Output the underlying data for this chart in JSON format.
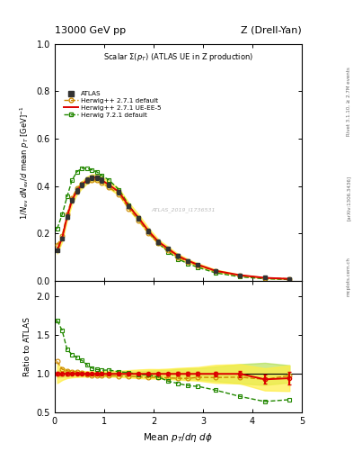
{
  "title_left": "13000 GeV pp",
  "title_right": "Z (Drell-Yan)",
  "plot_title": "Scalar Σ(p_{T}) (ATLAS UE in Z production)",
  "ylabel_main": "1/N_{ev} dN_{ev}/d mean p_{T} [GeV]^{-1}",
  "ylabel_ratio": "Ratio to ATLAS",
  "xlabel": "Mean p_{T}/dη dφ",
  "watermark": "ATLAS_2019_I1736531",
  "rivet_text": "Rivet 3.1.10, ≥ 2.7M events",
  "inspire_text": "[arXiv:1306.3436]",
  "mcplots_text": "mcplots.cern.ch",
  "atlas_x": [
    0.05,
    0.15,
    0.25,
    0.35,
    0.45,
    0.55,
    0.65,
    0.75,
    0.85,
    0.95,
    1.1,
    1.3,
    1.5,
    1.7,
    1.9,
    2.1,
    2.3,
    2.5,
    2.7,
    2.9,
    3.25,
    3.75,
    4.25,
    4.75
  ],
  "atlas_y": [
    0.13,
    0.18,
    0.27,
    0.34,
    0.38,
    0.405,
    0.425,
    0.435,
    0.435,
    0.425,
    0.405,
    0.375,
    0.315,
    0.265,
    0.21,
    0.165,
    0.135,
    0.105,
    0.085,
    0.068,
    0.043,
    0.024,
    0.014,
    0.009
  ],
  "atlas_yerr": [
    0.006,
    0.007,
    0.009,
    0.01,
    0.01,
    0.01,
    0.01,
    0.01,
    0.01,
    0.01,
    0.01,
    0.01,
    0.009,
    0.009,
    0.009,
    0.008,
    0.007,
    0.007,
    0.006,
    0.005,
    0.004,
    0.003,
    0.002,
    0.001
  ],
  "hw271_x": [
    0.05,
    0.15,
    0.25,
    0.35,
    0.45,
    0.55,
    0.65,
    0.75,
    0.85,
    0.95,
    1.1,
    1.3,
    1.5,
    1.7,
    1.9,
    2.1,
    2.3,
    2.5,
    2.7,
    2.9,
    3.25,
    3.75,
    4.25,
    4.75
  ],
  "hw271_y": [
    0.15,
    0.19,
    0.28,
    0.35,
    0.39,
    0.41,
    0.42,
    0.425,
    0.425,
    0.415,
    0.395,
    0.365,
    0.305,
    0.255,
    0.2,
    0.158,
    0.128,
    0.099,
    0.08,
    0.065,
    0.041,
    0.023,
    0.013,
    0.0088
  ],
  "hw271ue_x": [
    0.05,
    0.15,
    0.25,
    0.35,
    0.45,
    0.55,
    0.65,
    0.75,
    0.85,
    0.95,
    1.1,
    1.3,
    1.5,
    1.7,
    1.9,
    2.1,
    2.3,
    2.5,
    2.7,
    2.9,
    3.25,
    3.75,
    4.25,
    4.75
  ],
  "hw271ue_y": [
    0.13,
    0.18,
    0.27,
    0.34,
    0.38,
    0.405,
    0.425,
    0.435,
    0.435,
    0.425,
    0.405,
    0.375,
    0.315,
    0.265,
    0.21,
    0.165,
    0.135,
    0.105,
    0.085,
    0.068,
    0.043,
    0.024,
    0.013,
    0.0085
  ],
  "hw271ue_band_lo": [
    0.115,
    0.165,
    0.255,
    0.325,
    0.365,
    0.39,
    0.41,
    0.42,
    0.42,
    0.41,
    0.39,
    0.36,
    0.3,
    0.25,
    0.197,
    0.155,
    0.126,
    0.097,
    0.078,
    0.062,
    0.038,
    0.021,
    0.011,
    0.007
  ],
  "hw271ue_band_hi": [
    0.145,
    0.195,
    0.285,
    0.355,
    0.395,
    0.42,
    0.44,
    0.45,
    0.45,
    0.44,
    0.42,
    0.39,
    0.33,
    0.28,
    0.223,
    0.175,
    0.144,
    0.113,
    0.092,
    0.074,
    0.048,
    0.027,
    0.015,
    0.01
  ],
  "hw721_x": [
    0.05,
    0.15,
    0.25,
    0.35,
    0.45,
    0.55,
    0.65,
    0.75,
    0.85,
    0.95,
    1.1,
    1.3,
    1.5,
    1.7,
    1.9,
    2.1,
    2.3,
    2.5,
    2.7,
    2.9,
    3.25,
    3.75,
    4.25,
    4.75
  ],
  "hw721_y": [
    0.22,
    0.28,
    0.355,
    0.425,
    0.46,
    0.475,
    0.475,
    0.468,
    0.46,
    0.445,
    0.425,
    0.385,
    0.32,
    0.263,
    0.207,
    0.158,
    0.122,
    0.092,
    0.072,
    0.057,
    0.034,
    0.017,
    0.009,
    0.006
  ],
  "ratio_hw271_y": [
    1.16,
    1.06,
    1.04,
    1.03,
    1.026,
    1.012,
    0.988,
    0.977,
    0.977,
    0.977,
    0.975,
    0.973,
    0.968,
    0.962,
    0.952,
    0.958,
    0.948,
    0.943,
    0.941,
    0.956,
    0.953,
    0.958,
    0.929,
    0.978
  ],
  "ratio_hw271ue_y": [
    1.0,
    1.0,
    1.0,
    1.0,
    1.0,
    1.0,
    1.0,
    1.0,
    1.0,
    1.0,
    1.0,
    1.0,
    1.0,
    1.0,
    1.0,
    1.0,
    1.0,
    1.0,
    1.0,
    1.0,
    1.0,
    1.0,
    0.929,
    0.944
  ],
  "ratio_hw271ue_yerr": [
    0.02,
    0.018,
    0.016,
    0.014,
    0.013,
    0.012,
    0.011,
    0.011,
    0.011,
    0.011,
    0.011,
    0.011,
    0.012,
    0.013,
    0.015,
    0.016,
    0.018,
    0.02,
    0.022,
    0.024,
    0.03,
    0.04,
    0.06,
    0.08
  ],
  "ratio_hw271ue_band_lo": [
    0.88,
    0.92,
    0.945,
    0.955,
    0.96,
    0.962,
    0.965,
    0.966,
    0.966,
    0.965,
    0.963,
    0.96,
    0.952,
    0.944,
    0.938,
    0.939,
    0.933,
    0.924,
    0.918,
    0.912,
    0.884,
    0.875,
    0.786,
    0.778
  ],
  "ratio_hw271ue_band_hi": [
    1.12,
    1.08,
    1.055,
    1.045,
    1.04,
    1.038,
    1.035,
    1.034,
    1.034,
    1.035,
    1.037,
    1.04,
    1.048,
    1.056,
    1.062,
    1.061,
    1.067,
    1.076,
    1.082,
    1.088,
    1.116,
    1.125,
    1.072,
    1.11
  ],
  "ratio_hw721_y": [
    1.69,
    1.56,
    1.315,
    1.25,
    1.21,
    1.173,
    1.118,
    1.076,
    1.057,
    1.047,
    1.049,
    1.027,
    1.016,
    0.992,
    0.986,
    0.958,
    0.904,
    0.876,
    0.847,
    0.838,
    0.791,
    0.708,
    0.643,
    0.667
  ],
  "atlas_color": "#333333",
  "hw271_color": "#cc8800",
  "hw271ue_color": "#dd0000",
  "hw721_color": "#228800",
  "hw271ue_band_color": "#ffee44",
  "atlas_band_color": "#aadd44",
  "ylim_main": [
    0.0,
    1.0
  ],
  "ylim_ratio": [
    0.5,
    2.2
  ],
  "xlim": [
    0.0,
    5.0
  ],
  "yticks_main": [
    0.0,
    0.2,
    0.4,
    0.6,
    0.8,
    1.0
  ],
  "yticks_ratio": [
    0.5,
    1.0,
    1.5,
    2.0
  ],
  "background_color": "#ffffff"
}
